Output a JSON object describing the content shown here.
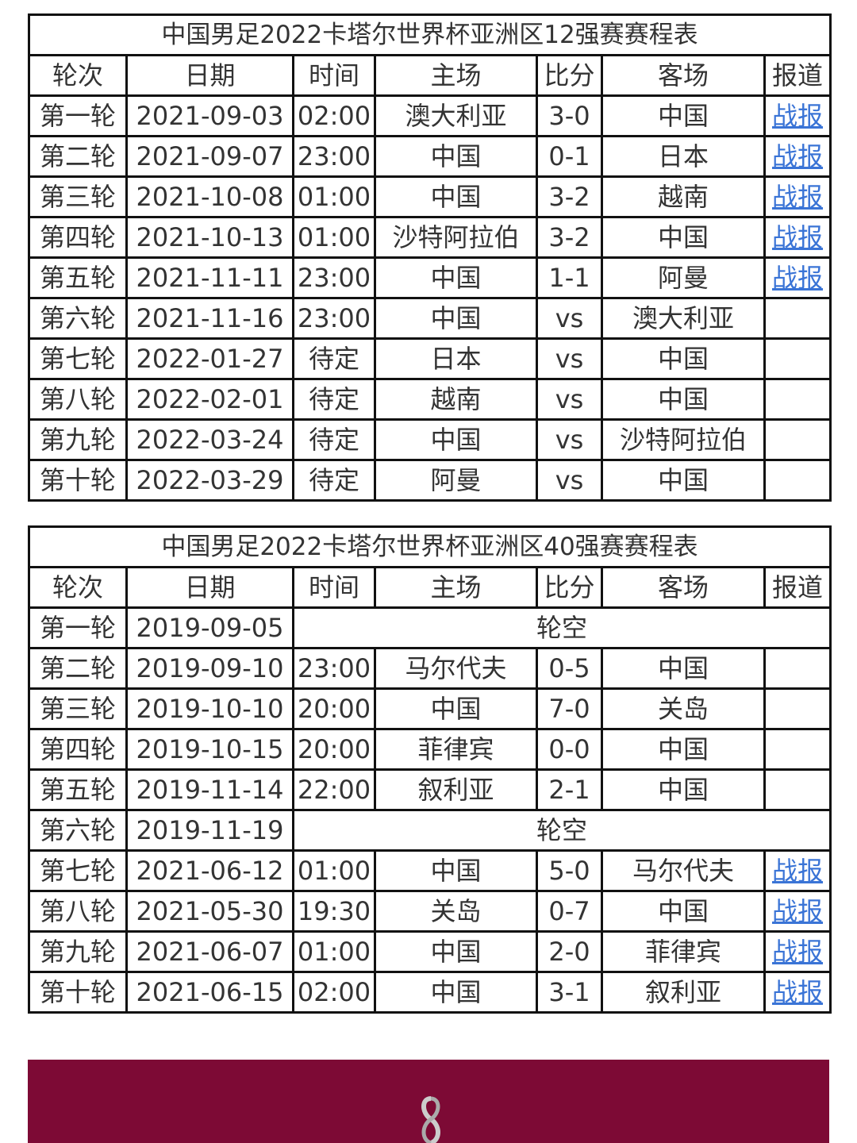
{
  "columns": [
    "轮次",
    "日期",
    "时间",
    "主场",
    "比分",
    "客场",
    "报道"
  ],
  "tables": [
    {
      "title": "中国男足2022卡塔尔世界杯亚洲区12强赛赛程表",
      "rows": [
        {
          "round": "第一轮",
          "date": "2021-09-03",
          "time": "02:00",
          "home": "澳大利亚",
          "score": "3-0",
          "away": "中国",
          "report": "战报"
        },
        {
          "round": "第二轮",
          "date": "2021-09-07",
          "time": "23:00",
          "home": "中国",
          "score": "0-1",
          "away": "日本",
          "report": "战报"
        },
        {
          "round": "第三轮",
          "date": "2021-10-08",
          "time": "01:00",
          "home": "中国",
          "score": "3-2",
          "away": "越南",
          "report": "战报"
        },
        {
          "round": "第四轮",
          "date": "2021-10-13",
          "time": "01:00",
          "home": "沙特阿拉伯",
          "score": "3-2",
          "away": "中国",
          "report": "战报"
        },
        {
          "round": "第五轮",
          "date": "2021-11-11",
          "time": "23:00",
          "home": "中国",
          "score": "1-1",
          "away": "阿曼",
          "report": "战报"
        },
        {
          "round": "第六轮",
          "date": "2021-11-16",
          "time": "23:00",
          "home": "中国",
          "score": "vs",
          "away": "澳大利亚",
          "report": ""
        },
        {
          "round": "第七轮",
          "date": "2022-01-27",
          "time": "待定",
          "home": "日本",
          "score": "vs",
          "away": "中国",
          "report": ""
        },
        {
          "round": "第八轮",
          "date": "2022-02-01",
          "time": "待定",
          "home": "越南",
          "score": "vs",
          "away": "中国",
          "report": ""
        },
        {
          "round": "第九轮",
          "date": "2022-03-24",
          "time": "待定",
          "home": "中国",
          "score": "vs",
          "away": "沙特阿拉伯",
          "report": ""
        },
        {
          "round": "第十轮",
          "date": "2022-03-29",
          "time": "待定",
          "home": "阿曼",
          "score": "vs",
          "away": "中国",
          "report": ""
        }
      ]
    },
    {
      "title": "中国男足2022卡塔尔世界杯亚洲区40强赛赛程表",
      "rows": [
        {
          "round": "第一轮",
          "date": "2019-09-05",
          "bye": "轮空"
        },
        {
          "round": "第二轮",
          "date": "2019-09-10",
          "time": "23:00",
          "home": "马尔代夫",
          "score": "0-5",
          "away": "中国",
          "report": ""
        },
        {
          "round": "第三轮",
          "date": "2019-10-10",
          "time": "20:00",
          "home": "中国",
          "score": "7-0",
          "away": "关岛",
          "report": ""
        },
        {
          "round": "第四轮",
          "date": "2019-10-15",
          "time": "20:00",
          "home": "菲律宾",
          "score": "0-0",
          "away": "中国",
          "report": ""
        },
        {
          "round": "第五轮",
          "date": "2019-11-14",
          "time": "22:00",
          "home": "叙利亚",
          "score": "2-1",
          "away": "中国",
          "report": ""
        },
        {
          "round": "第六轮",
          "date": "2019-11-19",
          "bye": "轮空"
        },
        {
          "round": "第七轮",
          "date": "2021-06-12",
          "time": "01:00",
          "home": "中国",
          "score": "5-0",
          "away": "马尔代夫",
          "report": "战报"
        },
        {
          "round": "第八轮",
          "date": "2021-05-30",
          "time": "19:30",
          "home": "关岛",
          "score": "0-7",
          "away": "中国",
          "report": "战报"
        },
        {
          "round": "第九轮",
          "date": "2021-06-07",
          "time": "01:00",
          "home": "中国",
          "score": "2-0",
          "away": "菲律宾",
          "report": "战报"
        },
        {
          "round": "第十轮",
          "date": "2021-06-15",
          "time": "02:00",
          "home": "中国",
          "score": "3-1",
          "away": "叙利亚",
          "report": "战报"
        }
      ]
    }
  ],
  "colors": {
    "banner": "#7d0a35",
    "link": "#3a74d6"
  },
  "banner": {
    "logo_icon": "world-cup-emblem-icon"
  }
}
